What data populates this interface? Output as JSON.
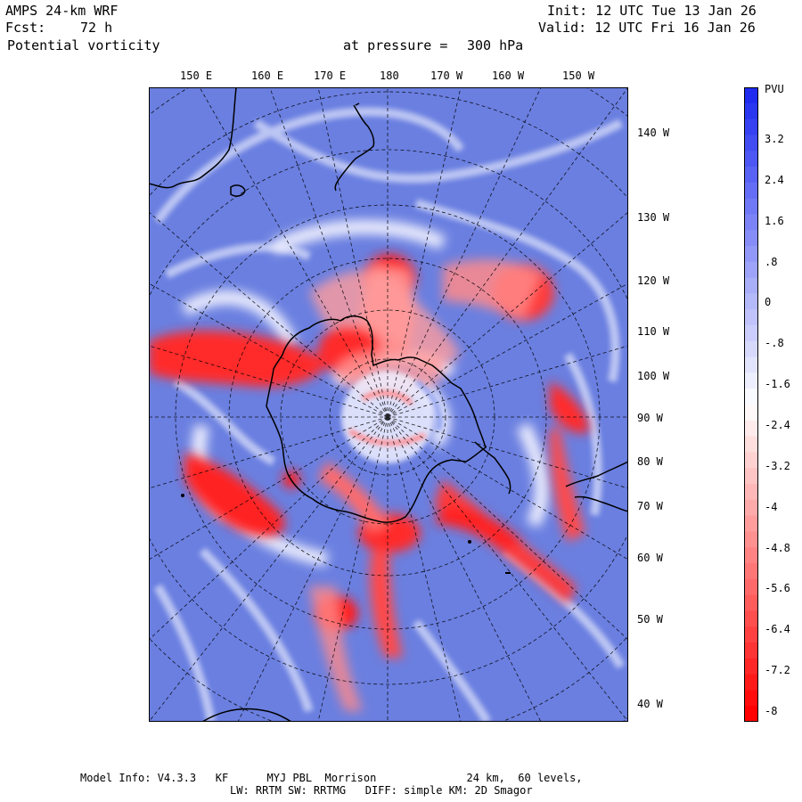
{
  "header": {
    "model": "AMPS 24-km WRF",
    "fcst_label": "Fcst:",
    "fcst_value": "72 h",
    "field": "Potential vorticity",
    "init": "Init: 12 UTC Tue 13 Jan 26",
    "valid": "Valid: 12 UTC Fri 16 Jan 26",
    "level_label": "at pressure =",
    "level_value": "300 hPa"
  },
  "top_longitudes": [
    "150 E",
    "160 E",
    "170 E",
    "180",
    "170 W",
    "160 W",
    "150 W"
  ],
  "right_longitudes": [
    "140 W",
    "130 W",
    "120 W",
    "110 W",
    "100 W",
    "90 W",
    "80 W",
    "70 W",
    "60 W",
    "50 W",
    "40 W"
  ],
  "colorbar": {
    "unit": "PVU",
    "labels": [
      "3.2",
      "2.4",
      "1.6",
      ".8",
      "0",
      "-.8",
      "-1.6",
      "-2.4",
      "-3.2",
      "-4",
      "-4.8",
      "-5.6",
      "-6.4",
      "-7.2",
      "-8"
    ],
    "top_color": "#1f2cf0",
    "bottom_color": "#ff0000"
  },
  "footer": {
    "line1": "Model Info: V4.3.3   KF      MYJ PBL  Morrison              24 km,  60 levels,",
    "line2": "LW: RRTM SW: RRTMG   DIFF: simple KM: 2D Smagor"
  },
  "colors": {
    "background_pv": "#6a7fe0",
    "strong_negative_pv": "#ff1a1a",
    "moderate_negative_pv": "#ff8a8a",
    "near_zero_pv": "#ffffff"
  }
}
